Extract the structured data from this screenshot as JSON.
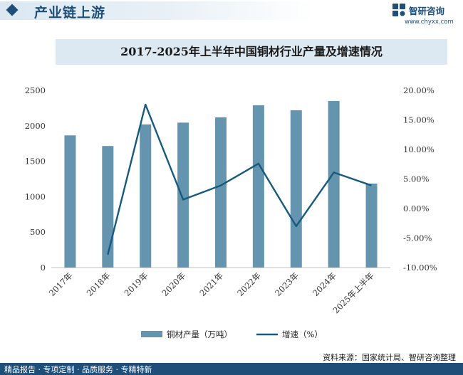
{
  "header": {
    "title": "产业链上游"
  },
  "logo": {
    "name": "智研咨询",
    "url": "www.chyxx.com",
    "icon": "zhiyan-logo-icon"
  },
  "footer": {
    "left_text": "精品报告 · 专项定制 · 品质服务 · 专精特新",
    "source": "资料来源：国家统计局、智研咨询整理"
  },
  "colors": {
    "bar": "#6594ae",
    "line": "#175a7c",
    "brand": "#1f4f78"
  },
  "chart_data": {
    "type": "bar",
    "title": "2017-2025年上半年中国铜材行业产量及增速情况",
    "categories": [
      "2017年",
      "2018年",
      "2019年",
      "2020年",
      "2021年",
      "2022年",
      "2023年",
      "2024年",
      "2025年上半年"
    ],
    "series": [
      {
        "name": "铜材产量（万吨）",
        "type": "bar",
        "axis": "left",
        "values": [
          1865,
          1715,
          2020,
          2045,
          2120,
          2290,
          2220,
          2350,
          1185
        ]
      },
      {
        "name": "增速（%）",
        "type": "line",
        "axis": "right",
        "values": [
          null,
          -7.8,
          17.6,
          1.5,
          3.9,
          7.6,
          -3.0,
          6.1,
          3.9
        ]
      }
    ],
    "y_left": {
      "range": [
        0,
        2500
      ],
      "ticks": [
        "0",
        "500",
        "1000",
        "1500",
        "2000",
        "2500"
      ]
    },
    "y_right": {
      "range": [
        -10,
        20
      ],
      "ticks": [
        "-10.00%",
        "-5.00%",
        "0.00%",
        "5.00%",
        "10.00%",
        "15.00%",
        "20.00%"
      ]
    },
    "grid": false,
    "legend": "bottom"
  }
}
